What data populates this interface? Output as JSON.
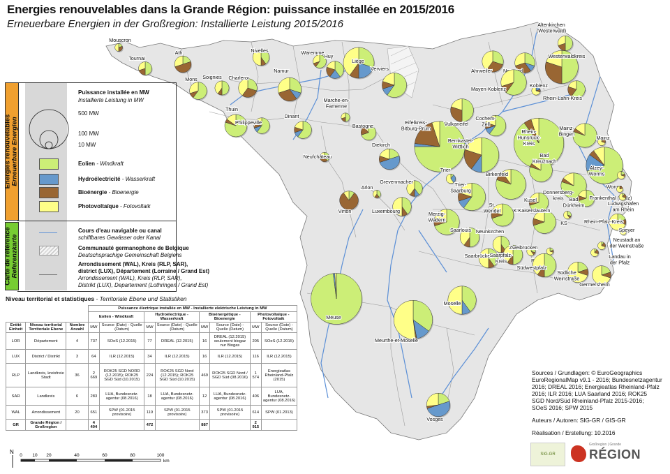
{
  "title": "Energies renouvelables dans la Grande Région: puissance installée en 2015/2016",
  "subtitle": "Erneuerbare Energien in der Großregion: Installierte Leistung 2015/2016",
  "colors": {
    "eolien": "#ccee77",
    "hydro": "#6699cc",
    "bio": "#996633",
    "photo": "#ffff88",
    "map_fill": "#e6e6e6",
    "river": "#5b8fd6",
    "legend_orange": "#f0a030",
    "legend_green": "#77cc33"
  },
  "legend": {
    "side_energy_fr": "Energies renouvelables",
    "side_energy_de": "Erneuerbare Energien",
    "side_ref_fr": "Carte de référence",
    "side_ref_de": "Referenzkarte",
    "power_fr": "Puissance installée en MW",
    "power_de": "Installierte Leistung in MW",
    "s500": "500 MW",
    "s100": "100 MW",
    "s10": "10 MW",
    "eolien_fr": "Eolien",
    "eolien_de": " - Windkraft",
    "hydro_fr": "Hydroélectricité",
    "hydro_de": " - Wasserkraft",
    "bio_fr": "Bioénergie",
    "bio_de": " - Bioenergie",
    "photo_fr": "Photovoltaïque",
    "photo_de": " - Fotovoltaik",
    "river_fr": "Cours d'eau navigable ou canal",
    "river_de": "schiffbares Gewässer oder Kanal",
    "comm_fr": "Communauté germanophone de Belgique",
    "comm_de": "Deutschsprachige Gemeinschaft Belgiens",
    "arr_fr_1": "Arrondissement (WAL), Kreis (RLP, SAR),",
    "arr_fr_2": "district (LUX), Département (Lorraine / Grand Est)",
    "arr_de_1": "Arrondissement (WAL), Kreis (RLP, SAR),",
    "arr_de_2": "Distrikt (LUX), Departement (Lothringen / Grand Est)"
  },
  "stats": {
    "title_fr": "Niveau territorial et statistiques",
    "title_de": " - Territoriale Ebene und Statistiken",
    "header_main": "Puissance électrique installée en MW - Installierte elektrische Leistung in MW",
    "groups": [
      "Eolien - Windkraft",
      "Hydroélectrique - Wasserkraft",
      "Bioénergétique - Bioenergie",
      "Photovoltaïque - Fotovoltaik"
    ],
    "col_entity": "Entité Einheit",
    "col_level": "Niveau territorial Territoriale Ebene",
    "col_count": "Nombre Anzahl",
    "col_mw": "MW",
    "col_source": "Source (Date) - Quelle (Datum)",
    "rows": [
      {
        "entity": "LOR",
        "level": "Département",
        "count": "4",
        "eol_mw": "737",
        "eol_src": "SOeS (12.2015)",
        "hyd_mw": "77",
        "hyd_src": "DREAL (12.2015)",
        "bio_mw": "16",
        "bio_src": "DREAL (12.2015) seulement biogaz nur Biogas",
        "pv_mw": "205",
        "pv_src": "SOeS (12.2015)"
      },
      {
        "entity": "LUX",
        "level": "District / Distrikt",
        "count": "3",
        "eol_mw": "64",
        "eol_src": "ILR (12.2015)",
        "hyd_mw": "34",
        "hyd_src": "ILR (12.2015)",
        "bio_mw": "16",
        "bio_src": "ILR (12.2015)",
        "pv_mw": "116",
        "pv_src": "ILR (12.2015)"
      },
      {
        "entity": "RLP",
        "level": "Landkreis, kreisfreie Stadt",
        "count": "36",
        "eol_mw": "2 669",
        "eol_src": "ROK25 SGD NORD (12.2015); ROK25 SGD Süd (10.2015)",
        "hyd_mw": "224",
        "hyd_src": "ROK25 SGD Nord (12.2015); ROK25 SGD Süd (10.2015)",
        "bio_mw": "469",
        "bio_src": "ROK25 SGD Nord / SGD Süd (08.2016)",
        "pv_mw": "1 574",
        "pv_src": "Energieatlas Rheinland-Pfalz (2015)"
      },
      {
        "entity": "SAR",
        "level": "Landkreis",
        "count": "6",
        "eol_mw": "283",
        "eol_src": "LUA, Bundesnetz-agentur (08.2016)",
        "hyd_mw": "18",
        "hyd_src": "LUA, Bundesnetz-agentur (08.2016)",
        "bio_mw": "12",
        "bio_src": "LUA, Bundesnetz-agentur (08.2016)",
        "pv_mw": "406",
        "pv_src": "LUA, Bundesnetz-agentur (08.2016)"
      },
      {
        "entity": "WAL",
        "level": "Arrondissement",
        "count": "20",
        "eol_mw": "651",
        "eol_src": "SPW (01.2015 provisoire)",
        "hyd_mw": "119",
        "hyd_src": "SPW (01.2015 provisoire)",
        "bio_mw": "373",
        "bio_src": "SPW (01.2015 provisoire)",
        "pv_mw": "614",
        "pv_src": "SPW (01.2013)"
      },
      {
        "entity": "GR",
        "level": "Grande Région / Großregion",
        "count": "",
        "eol_mw": "4 404",
        "eol_src": "",
        "hyd_mw": "472",
        "hyd_src": "",
        "bio_mw": "887",
        "bio_src": "",
        "pv_mw": "2 915",
        "pv_src": ""
      }
    ]
  },
  "scale": {
    "labels": [
      "0",
      "10",
      "20",
      "40",
      "60",
      "80",
      "100"
    ],
    "unit": "km",
    "north": "N"
  },
  "sources": {
    "line1": "Sources / Grundlagen: © EuroGeographics",
    "line2": "EuroRegionalMap v9.1 - 2016; Bundesnetzagentur",
    "line3": "2016; DREAL 2016; Energieatlas Rheinland-Pfalz",
    "line4": "2016; ILR 2016;  LUA Saarland 2016; ROK25",
    "line5": "SGD Nord/Süd Rheinland-Pfalz 2015-2016;",
    "line6": "SOeS 2016; SPW 2015",
    "authors": "Auteurs / Autoren: SIG-GR / GIS-GR",
    "date": "Réalisation / Erstellung: 10.2016",
    "logo1": "SIG-GR",
    "logo2_top": "Großregion | Grande",
    "logo2_main": "RÉGION"
  },
  "regions": [
    {
      "name": "Mouscron",
      "e": 2,
      "h": 0,
      "b": 3,
      "p": 5,
      "mw": 12
    },
    {
      "name": "Tournai",
      "e": 5,
      "h": 0,
      "b": 2,
      "p": 3,
      "mw": 35
    },
    {
      "name": "Ath",
      "e": 2,
      "h": 0,
      "b": 5,
      "p": 3,
      "mw": 55
    },
    {
      "name": "Mons",
      "e": 6,
      "h": 0,
      "b": 1,
      "p": 3,
      "mw": 60
    },
    {
      "name": "Soignies",
      "e": 5,
      "h": 0,
      "b": 1,
      "p": 4,
      "mw": 40
    },
    {
      "name": "Charleroi",
      "e": 3,
      "h": 0,
      "b": 3,
      "p": 4,
      "mw": 70
    },
    {
      "name": "Nivelles",
      "e": 4,
      "h": 0,
      "b": 1,
      "p": 5,
      "mw": 55
    },
    {
      "name": "Waremme",
      "e": 6,
      "h": 0,
      "b": 1,
      "p": 3,
      "mw": 35
    },
    {
      "name": "Liège",
      "e": 3,
      "h": 2,
      "b": 1,
      "p": 4,
      "mw": 190
    },
    {
      "name": "Huy",
      "e": 4,
      "h": 2,
      "b": 2,
      "p": 2,
      "mw": 60
    },
    {
      "name": "Namur",
      "e": 3,
      "h": 1,
      "b": 3,
      "p": 3,
      "mw": 110
    },
    {
      "name": "Verviers",
      "e": 6,
      "h": 1,
      "b": 1,
      "p": 2,
      "mw": 120
    },
    {
      "name": "Thuin",
      "e": 8,
      "h": 0,
      "b": 0.5,
      "p": 1.5,
      "mw": 100
    },
    {
      "name": "Philippeville",
      "e": 6,
      "h": 1,
      "b": 1,
      "p": 2,
      "mw": 50
    },
    {
      "name": "Dinant",
      "e": 6,
      "h": 1,
      "b": 1,
      "p": 2,
      "mw": 60
    },
    {
      "name": "Marche-en-Famenne",
      "e": 5,
      "h": 0,
      "b": 2,
      "p": 3,
      "mw": 15
    },
    {
      "name": "Bastogne",
      "e": 7,
      "h": 0,
      "b": 2,
      "p": 1,
      "mw": 45
    },
    {
      "name": "Neufchâteau",
      "e": 4,
      "h": 0,
      "b": 3,
      "p": 3,
      "mw": 18
    },
    {
      "name": "Arlon",
      "e": 4,
      "h": 0,
      "b": 2,
      "p": 4,
      "mw": 12
    },
    {
      "name": "Virton",
      "e": 1,
      "h": 0,
      "b": 8,
      "p": 1,
      "mw": 70
    },
    {
      "name": "Diekirch",
      "e": 2,
      "h": 5,
      "b": 1,
      "p": 2,
      "mw": 85
    },
    {
      "name": "Grevenmacher",
      "e": 4,
      "h": 1,
      "b": 1,
      "p": 4,
      "mw": 50
    },
    {
      "name": "Luxembourg",
      "e": 4,
      "h": 0,
      "b": 1,
      "p": 5,
      "mw": 70
    },
    {
      "name": "Eifelkreis-Bitburg-Prüm",
      "e": 7.5,
      "h": 0.2,
      "b": 1.8,
      "p": 0.5,
      "mw": 510
    },
    {
      "name": "Vulkaneifel",
      "e": 5,
      "h": 0,
      "b": 3,
      "p": 2,
      "mw": 105
    },
    {
      "name": "Cochem-Zell",
      "e": 6,
      "h": 1,
      "b": 1,
      "p": 2,
      "mw": 85
    },
    {
      "name": "Bernkastel-Wittlich",
      "e": 5,
      "h": 1,
      "b": 2,
      "p": 2,
      "mw": 240
    },
    {
      "name": "Trier",
      "e": 1,
      "h": 3,
      "b": 0,
      "p": 6,
      "mw": 18
    },
    {
      "name": "Trier-Saarburg",
      "e": 6,
      "h": 1,
      "b": 1,
      "p": 2,
      "mw": 150
    },
    {
      "name": "Rhein-Hunsrück-Kreis",
      "e": 9,
      "h": 0,
      "b": 0.5,
      "p": 0.5,
      "mw": 500
    },
    {
      "name": "Birkenfeld",
      "e": 8,
      "h": 0,
      "b": 1,
      "p": 1,
      "mw": 180
    },
    {
      "name": "Ahrweiler",
      "e": 3,
      "h": 0,
      "b": 3,
      "p": 4,
      "mw": 90
    },
    {
      "name": "Neuwied",
      "e": 3,
      "h": 1,
      "b": 3,
      "p": 3,
      "mw": 80
    },
    {
      "name": "Altenkirchen (Westerwald)",
      "e": 5,
      "h": 0,
      "b": 2,
      "p": 3,
      "mw": 45
    },
    {
      "name": "Westerwaldkreis",
      "e": 5,
      "h": 0,
      "b": 3,
      "p": 2,
      "mw": 220
    },
    {
      "name": "Mayen-Koblenz",
      "e": 6,
      "h": 0,
      "b": 1,
      "p": 3,
      "mw": 130
    },
    {
      "name": "Koblenz",
      "e": 0,
      "h": 2,
      "b": 1,
      "p": 7,
      "mw": 15
    },
    {
      "name": "Rhein-Lahn-Kreis",
      "e": 6,
      "h": 0,
      "b": 2,
      "p": 2,
      "mw": 60
    },
    {
      "name": "Mainz-Bingen",
      "e": 8,
      "h": 0,
      "b": 0.5,
      "p": 1.5,
      "mw": 115
    },
    {
      "name": "Mainz",
      "e": 1,
      "h": 0,
      "b": 2,
      "p": 7,
      "mw": 12
    },
    {
      "name": "Bad Kreuznach",
      "e": 8,
      "h": 0,
      "b": 0.5,
      "p": 1.5,
      "mw": 105
    },
    {
      "name": "Alzey-Worms",
      "e": 7,
      "h": 1.5,
      "b": 0.5,
      "p": 1,
      "mw": 270
    },
    {
      "name": "Worms",
      "e": 2,
      "h": 0,
      "b": 1,
      "p": 7,
      "mw": 12
    },
    {
      "name": "Donnersbergkreis",
      "e": 8,
      "h": 0,
      "b": 0.5,
      "p": 1.5,
      "mw": 130
    },
    {
      "name": "Kusel",
      "e": 7,
      "h": 0,
      "b": 1,
      "p": 2,
      "mw": 75
    },
    {
      "name": "Bad Dürkheim",
      "e": 7,
      "h": 0,
      "b": 1,
      "p": 2,
      "mw": 55
    },
    {
      "name": "LK Kaiserslautern",
      "e": 7,
      "h": 0,
      "b": 1,
      "p": 2,
      "mw": 105
    },
    {
      "name": "KS",
      "e": 3,
      "h": 0,
      "b": 1,
      "p": 6,
      "mw": 12
    },
    {
      "name": "Frankenthal (Pfalz)",
      "e": 0,
      "h": 0,
      "b": 2,
      "p": 8,
      "mw": 8
    },
    {
      "name": "Ludwigshafen am Rhein",
      "e": 1,
      "h": 0,
      "b": 2,
      "p": 7,
      "mw": 10
    },
    {
      "name": "Rhein-Pfalz-Kreis",
      "e": 2,
      "h": 0,
      "b": 1,
      "p": 7,
      "mw": 55
    },
    {
      "name": "Speyer",
      "e": 0,
      "h": 0,
      "b": 2,
      "p": 8,
      "mw": 8
    },
    {
      "name": "St. Wendel",
      "e": 7,
      "h": 0,
      "b": 1,
      "p": 2,
      "mw": 100
    },
    {
      "name": "Merzig-Wadern",
      "e": 7,
      "h": 0,
      "b": 1,
      "p": 2,
      "mw": 130
    },
    {
      "name": "Saarlouis",
      "e": 5,
      "h": 0,
      "b": 1,
      "p": 4,
      "mw": 75
    },
    {
      "name": "Neunkirchen",
      "e": 4,
      "h": 0,
      "b": 1,
      "p": 5,
      "mw": 55
    },
    {
      "name": "Saarbrücken",
      "e": 4,
      "h": 0,
      "b": 1,
      "p": 5,
      "mw": 75
    },
    {
      "name": "Saarpfalz-Kreis",
      "e": 5,
      "h": 0,
      "b": 1,
      "p": 4,
      "mw": 75
    },
    {
      "name": "Zweibrücken",
      "e": 3,
      "h": 0,
      "b": 1,
      "p": 6,
      "mw": 15
    },
    {
      "name": "Pirmasens",
      "e": 2,
      "h": 0,
      "b": 1,
      "p": 7,
      "mw": 10
    },
    {
      "name": "Südwestpfalz",
      "e": 5,
      "h": 0,
      "b": 1,
      "p": 4,
      "mw": 110
    },
    {
      "name": "Neustadt an der Weinstraße",
      "e": 1,
      "h": 0,
      "b": 2,
      "p": 7,
      "mw": 12
    },
    {
      "name": "Landau in der Pfalz",
      "e": 1,
      "h": 0,
      "b": 2,
      "p": 7,
      "mw": 12
    },
    {
      "name": "Südliche Weinstraße",
      "e": 2,
      "h": 0,
      "b": 1,
      "p": 7,
      "mw": 85
    },
    {
      "name": "Germersheim",
      "e": 2,
      "h": 0,
      "b": 1,
      "p": 7,
      "mw": 70
    },
    {
      "name": "Meuse",
      "e": 9.8,
      "h": 0.1,
      "b": 0,
      "p": 0.1,
      "mw": 520
    },
    {
      "name": "Moselle",
      "e": 4,
      "h": 1,
      "b": 0,
      "p": 5,
      "mw": 160
    },
    {
      "name": "Meurthe-et-Moselle",
      "e": 3.5,
      "h": 1.2,
      "b": 0.1,
      "p": 5.2,
      "mw": 300
    },
    {
      "name": "Vosges",
      "e": 2,
      "h": 5,
      "b": 0.3,
      "p": 2.7,
      "mw": 110
    }
  ]
}
